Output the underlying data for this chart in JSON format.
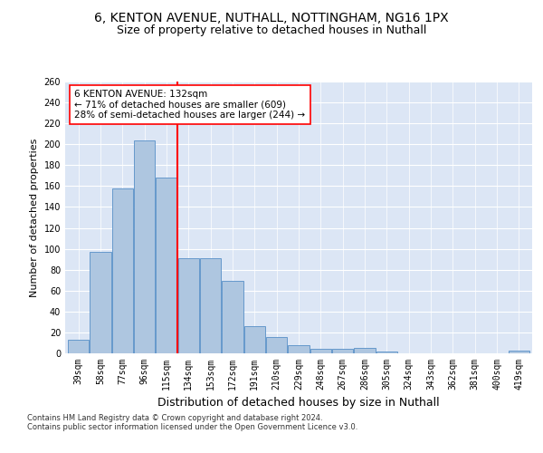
{
  "title_line1": "6, KENTON AVENUE, NUTHALL, NOTTINGHAM, NG16 1PX",
  "title_line2": "Size of property relative to detached houses in Nuthall",
  "xlabel": "Distribution of detached houses by size in Nuthall",
  "ylabel": "Number of detached properties",
  "footnote1": "Contains HM Land Registry data © Crown copyright and database right 2024.",
  "footnote2": "Contains public sector information licensed under the Open Government Licence v3.0.",
  "bar_labels": [
    "39sqm",
    "58sqm",
    "77sqm",
    "96sqm",
    "115sqm",
    "134sqm",
    "153sqm",
    "172sqm",
    "191sqm",
    "210sqm",
    "229sqm",
    "248sqm",
    "267sqm",
    "286sqm",
    "305sqm",
    "324sqm",
    "343sqm",
    "362sqm",
    "381sqm",
    "400sqm",
    "419sqm"
  ],
  "bar_values": [
    13,
    97,
    158,
    204,
    168,
    91,
    91,
    69,
    26,
    16,
    8,
    4,
    4,
    5,
    2,
    0,
    0,
    0,
    0,
    0,
    3
  ],
  "bar_color": "#aec6e0",
  "bar_edge_color": "#6699cc",
  "vline_index": 4.5,
  "vline_color": "red",
  "annotation_text": "6 KENTON AVENUE: 132sqm\n← 71% of detached houses are smaller (609)\n28% of semi-detached houses are larger (244) →",
  "annotation_box_color": "white",
  "annotation_box_edge": "red",
  "ylim": [
    0,
    260
  ],
  "yticks": [
    0,
    20,
    40,
    60,
    80,
    100,
    120,
    140,
    160,
    180,
    200,
    220,
    240,
    260
  ],
  "background_color": "#dce6f5",
  "grid_color": "white",
  "title1_fontsize": 10,
  "title2_fontsize": 9,
  "xlabel_fontsize": 9,
  "ylabel_fontsize": 8,
  "tick_fontsize": 7,
  "annotation_fontsize": 7.5,
  "footnote_fontsize": 6
}
